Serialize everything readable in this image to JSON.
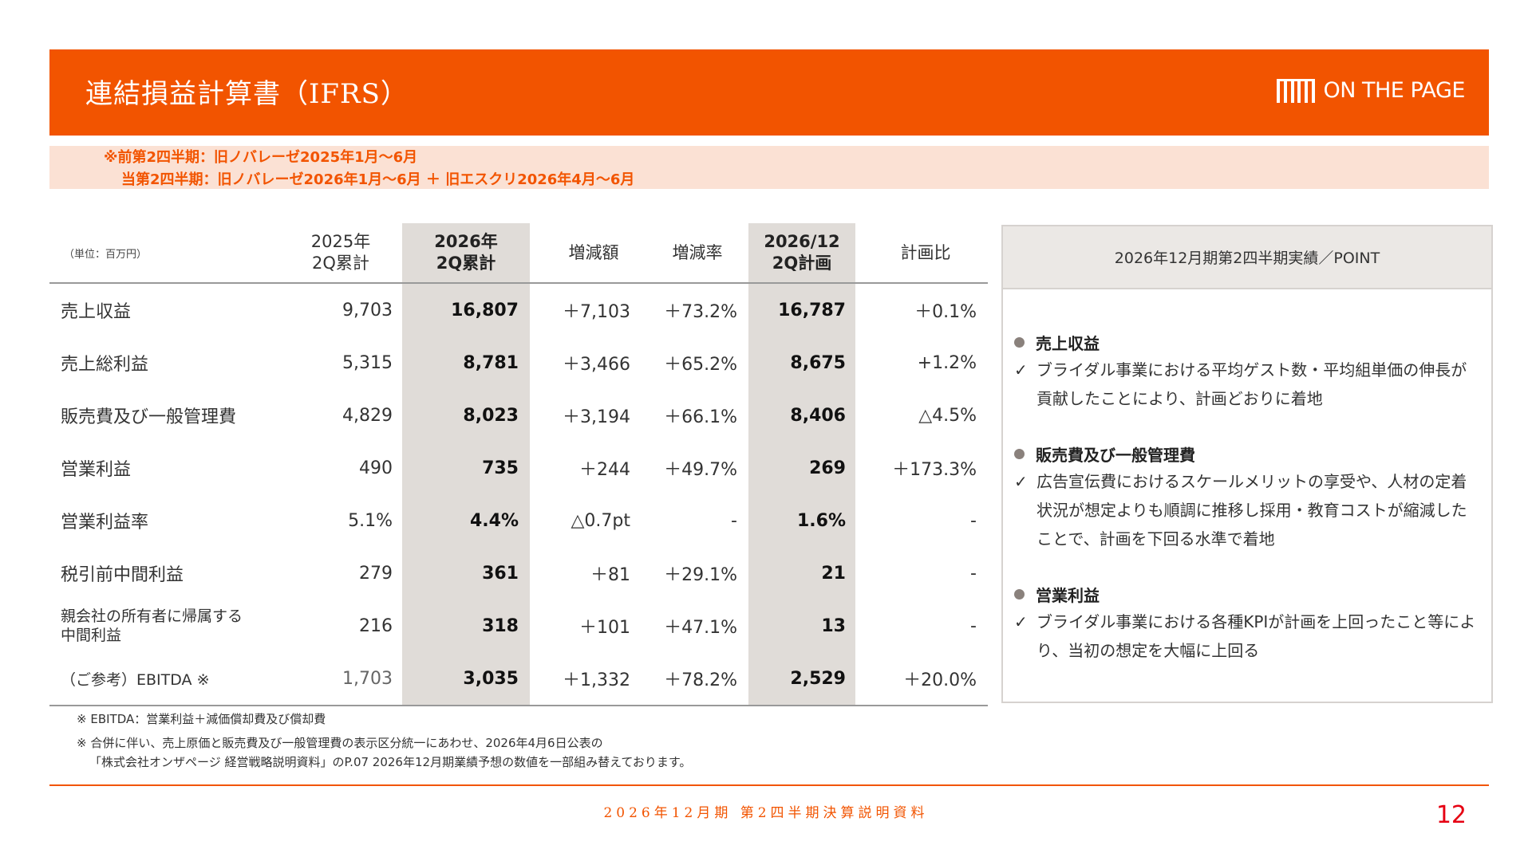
{
  "header": {
    "title": "連結損益計算書（IFRS）",
    "logo_text": "ON THE PAGE"
  },
  "notice": {
    "line1": "※前第2四半期：旧ノバレーゼ2025年1月～6月",
    "line2": "当第2四半期：旧ノバレーゼ2026年1月～6月 ＋ 旧エスクリ2026年4月～6月"
  },
  "table": {
    "unit": "（単位：百万円）",
    "headers": [
      "2025年\n2Q累計",
      "2026年\n2Q累計",
      "増減額",
      "増減率",
      "2026/12\n2Q計画",
      "計画比"
    ],
    "rows": [
      {
        "label": "売上収益",
        "values": [
          "9,703",
          "16,807",
          "＋7,103",
          "＋73.2%",
          "16,787",
          "＋0.1%"
        ]
      },
      {
        "label": "売上総利益",
        "values": [
          "5,315",
          "8,781",
          "＋3,466",
          "＋65.2%",
          "8,675",
          "+1.2%"
        ]
      },
      {
        "label": "販売費及び一般管理費",
        "values": [
          "4,829",
          "8,023",
          "＋3,194",
          "＋66.1%",
          "8,406",
          "△4.5%"
        ]
      },
      {
        "label": "営業利益",
        "values": [
          "490",
          "735",
          "＋244",
          "＋49.7%",
          "269",
          "＋173.3%"
        ]
      },
      {
        "label": "営業利益率",
        "values": [
          "5.1%",
          "4.4%",
          "△0.7pt",
          "-",
          "1.6%",
          "-"
        ]
      },
      {
        "label": "税引前中間利益",
        "values": [
          "279",
          "361",
          "＋81",
          "＋29.1%",
          "21",
          "-"
        ]
      },
      {
        "label": "親会社の所有者に帰属する\n中間利益",
        "values": [
          "216",
          "318",
          "＋101",
          "＋47.1%",
          "13",
          "-"
        ]
      },
      {
        "label": "（ご参考）EBITDA ※",
        "values": [
          "1,703",
          "3,035",
          "＋1,332",
          "＋78.2%",
          "2,529",
          "＋20.0%"
        ]
      }
    ]
  },
  "notes": {
    "n1": "※ EBITDA：営業利益＋減価償却費及び償却費",
    "n2": "※ 合併に伴い、売上原価と販売費及び一般管理費の表示区分統一にあわせ、2026年4月6日公表の",
    "n3": "「株式会社オンザページ 経営戦略説明資料」のP.07 2026年12月期業績予想の数値を一部組み替えております。"
  },
  "panel": {
    "title": "2026年12月期第2四半期実績／POINT",
    "points": [
      {
        "heading": "売上収益",
        "check": "✓",
        "text": "ブライダル事業における平均ゲスト数・平均組単価の伸長が貢献したことにより、計画どおりに着地"
      },
      {
        "heading": "販売費及び一般管理費",
        "check": "✓",
        "text": "広告宣伝費におけるスケールメリットの享受や、人材の定着状況が想定よりも順調に推移し採用・教育コストが縮減したことで、計画を下回る水準で着地"
      },
      {
        "heading": "営業利益",
        "check": "✓",
        "text": "ブライダル事業における各種KPIが計画を上回ったこと等により、当初の想定を大幅に上回る"
      }
    ]
  },
  "footer": {
    "text": "2026年12月期 第2四半期決算説明資料",
    "page": "12"
  },
  "colors": {
    "brand_orange": "#f25400",
    "notice_bg": "#fbe1d4",
    "highlight_col": "#e0dcd8",
    "page_number": "#e60012"
  }
}
